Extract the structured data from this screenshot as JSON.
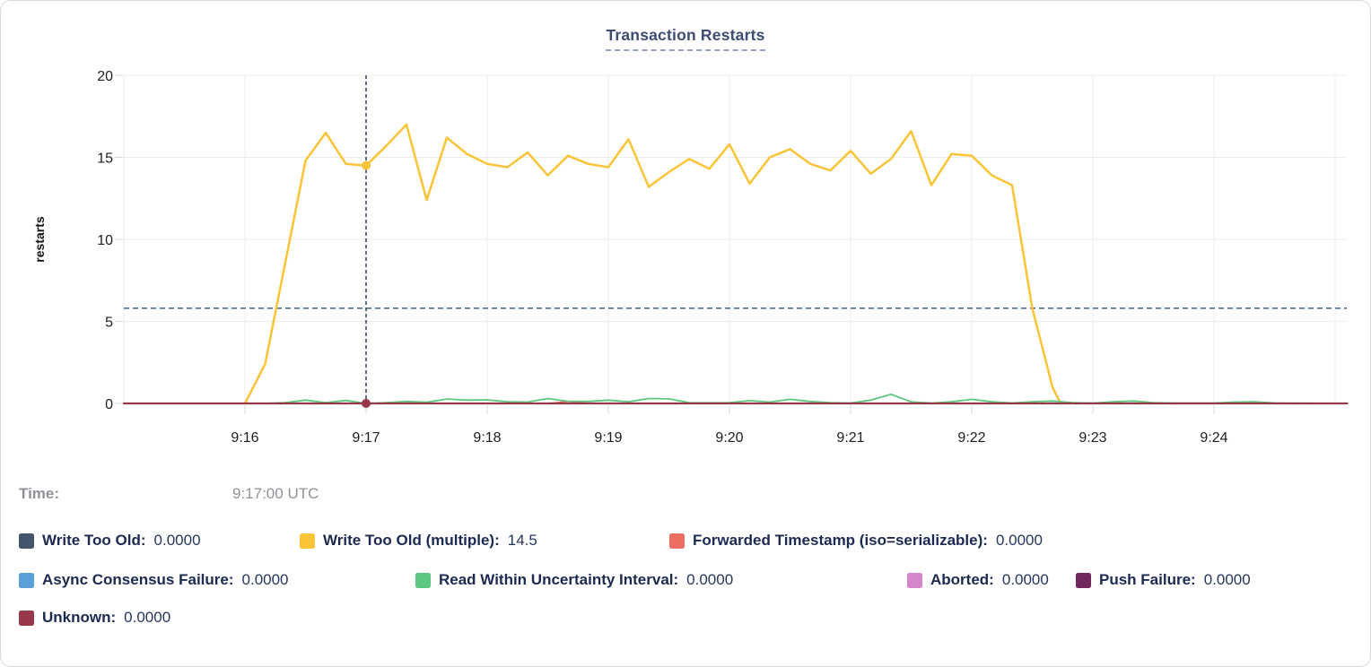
{
  "title": "Transaction Restarts",
  "hover": {
    "time_label": "Time:",
    "time_value": "9:17:00 UTC"
  },
  "legend": {
    "rows": [
      {
        "items": [
          {
            "label": "Write Too Old:",
            "value": "0.0000",
            "color": "#44546b"
          },
          {
            "label": "Write Too Old (multiple):",
            "value": "14.5",
            "color": "#fbc437"
          },
          {
            "label": "Forwarded Timestamp (iso=serializable):",
            "value": "0.0000",
            "color": "#ec6e62"
          }
        ]
      },
      {
        "items": [
          {
            "label": "Async Consensus Failure:",
            "value": "0.0000",
            "color": "#5b9fd8"
          },
          {
            "label": "Read Within Uncertainty Interval:",
            "value": "0.0000",
            "color": "#5ec77f"
          },
          {
            "label": "Aborted:",
            "value": "0.0000",
            "color": "#d685ca"
          },
          {
            "label": "Push Failure:",
            "value": "0.0000",
            "color": "#71295d"
          }
        ]
      },
      {
        "items": [
          {
            "label": "Unknown:",
            "value": "0.0000",
            "color": "#96374a"
          }
        ]
      }
    ]
  },
  "chart_data": {
    "type": "line",
    "title": "Transaction Restarts",
    "xlabel": "",
    "ylabel": "restarts",
    "ylim": [
      0,
      20
    ],
    "yticks": [
      0,
      5,
      10,
      15,
      20
    ],
    "grid": true,
    "legend_position": "below",
    "x_domain": [
      "9:15:00",
      "9:25:06"
    ],
    "x_grid_times": [
      "9:15:00",
      "9:16:00",
      "9:17:00",
      "9:18:00",
      "9:19:00",
      "9:20:00",
      "9:21:00",
      "9:22:00",
      "9:23:00",
      "9:24:00",
      "9:25:00"
    ],
    "x_ticks": [
      {
        "time": "9:16:00",
        "label": "9:16"
      },
      {
        "time": "9:17:00",
        "label": "9:17"
      },
      {
        "time": "9:18:00",
        "label": "9:18"
      },
      {
        "time": "9:19:00",
        "label": "9:19"
      },
      {
        "time": "9:20:00",
        "label": "9:20"
      },
      {
        "time": "9:21:00",
        "label": "9:21"
      },
      {
        "time": "9:22:00",
        "label": "9:22"
      },
      {
        "time": "9:23:00",
        "label": "9:23"
      },
      {
        "time": "9:24:00",
        "label": "9:24"
      }
    ],
    "hovered_time": "9:17:00",
    "crosshair": {
      "time": "9:17:00",
      "color": "#3a4c68"
    },
    "guide_line": {
      "value": 5.8,
      "color": "#4c6f94"
    },
    "series": [
      {
        "name": "Write Too Old",
        "color": "#44546b",
        "stroke_width": 1.6,
        "points": [
          [
            "9:15:00",
            0
          ],
          [
            "9:25:06",
            0
          ]
        ]
      },
      {
        "name": "Write Too Old (multiple)",
        "color": "#fbc437",
        "stroke_width": 2.5,
        "points": [
          [
            "9:16:00",
            0
          ],
          [
            "9:16:10",
            2.4
          ],
          [
            "9:16:20",
            8.6
          ],
          [
            "9:16:30",
            14.8
          ],
          [
            "9:16:40",
            16.5
          ],
          [
            "9:16:50",
            14.6
          ],
          [
            "9:17:00",
            14.5
          ],
          [
            "9:17:10",
            15.7
          ],
          [
            "9:17:20",
            17.0
          ],
          [
            "9:17:30",
            12.4
          ],
          [
            "9:17:40",
            16.2
          ],
          [
            "9:17:50",
            15.2
          ],
          [
            "9:18:00",
            14.6
          ],
          [
            "9:18:10",
            14.4
          ],
          [
            "9:18:20",
            15.3
          ],
          [
            "9:18:30",
            13.9
          ],
          [
            "9:18:40",
            15.1
          ],
          [
            "9:18:50",
            14.6
          ],
          [
            "9:19:00",
            14.4
          ],
          [
            "9:19:10",
            16.1
          ],
          [
            "9:19:20",
            13.2
          ],
          [
            "9:19:30",
            14.1
          ],
          [
            "9:19:40",
            14.9
          ],
          [
            "9:19:50",
            14.3
          ],
          [
            "9:20:00",
            15.8
          ],
          [
            "9:20:10",
            13.4
          ],
          [
            "9:20:20",
            15.0
          ],
          [
            "9:20:30",
            15.5
          ],
          [
            "9:20:40",
            14.6
          ],
          [
            "9:20:50",
            14.2
          ],
          [
            "9:21:00",
            15.4
          ],
          [
            "9:21:10",
            14.0
          ],
          [
            "9:21:20",
            14.9
          ],
          [
            "9:21:30",
            16.6
          ],
          [
            "9:21:40",
            13.3
          ],
          [
            "9:21:50",
            15.2
          ],
          [
            "9:22:00",
            15.1
          ],
          [
            "9:22:10",
            13.9
          ],
          [
            "9:22:20",
            13.3
          ],
          [
            "9:22:30",
            5.8
          ],
          [
            "9:22:40",
            1.0
          ],
          [
            "9:22:44",
            0
          ]
        ]
      },
      {
        "name": "Forwarded Timestamp (iso=serializable)",
        "color": "#ec6e62",
        "stroke_width": 1.6,
        "points": [
          [
            "9:15:00",
            0
          ],
          [
            "9:18:30",
            0
          ],
          [
            "9:18:40",
            0.12
          ],
          [
            "9:18:50",
            0
          ],
          [
            "9:25:06",
            0
          ]
        ]
      },
      {
        "name": "Async Consensus Failure",
        "color": "#5b9fd8",
        "stroke_width": 1.6,
        "points": [
          [
            "9:15:00",
            0
          ],
          [
            "9:25:06",
            0
          ]
        ]
      },
      {
        "name": "Read Within Uncertainty Interval",
        "color": "#5ec77f",
        "stroke_width": 1.8,
        "points": [
          [
            "9:15:00",
            0
          ],
          [
            "9:16:10",
            0
          ],
          [
            "9:16:20",
            0.05
          ],
          [
            "9:16:30",
            0.2
          ],
          [
            "9:16:40",
            0.05
          ],
          [
            "9:16:50",
            0.18
          ],
          [
            "9:17:00",
            0
          ],
          [
            "9:17:10",
            0.05
          ],
          [
            "9:17:20",
            0.12
          ],
          [
            "9:17:30",
            0.07
          ],
          [
            "9:17:40",
            0.27
          ],
          [
            "9:17:50",
            0.2
          ],
          [
            "9:18:00",
            0.22
          ],
          [
            "9:18:10",
            0.1
          ],
          [
            "9:18:20",
            0.08
          ],
          [
            "9:18:30",
            0.3
          ],
          [
            "9:18:40",
            0.13
          ],
          [
            "9:18:50",
            0.12
          ],
          [
            "9:19:00",
            0.2
          ],
          [
            "9:19:10",
            0.1
          ],
          [
            "9:19:20",
            0.3
          ],
          [
            "9:19:30",
            0.28
          ],
          [
            "9:19:40",
            0.05
          ],
          [
            "9:19:50",
            0.04
          ],
          [
            "9:20:00",
            0.05
          ],
          [
            "9:20:10",
            0.17
          ],
          [
            "9:20:20",
            0.08
          ],
          [
            "9:20:30",
            0.25
          ],
          [
            "9:20:40",
            0.12
          ],
          [
            "9:20:50",
            0.05
          ],
          [
            "9:21:00",
            0.02
          ],
          [
            "9:21:10",
            0.2
          ],
          [
            "9:21:20",
            0.55
          ],
          [
            "9:21:30",
            0.1
          ],
          [
            "9:21:40",
            0.02
          ],
          [
            "9:21:50",
            0.1
          ],
          [
            "9:22:00",
            0.25
          ],
          [
            "9:22:10",
            0.1
          ],
          [
            "9:22:20",
            0.03
          ],
          [
            "9:22:30",
            0.1
          ],
          [
            "9:22:40",
            0.15
          ],
          [
            "9:22:50",
            0.05
          ],
          [
            "9:23:00",
            0.02
          ],
          [
            "9:23:10",
            0.1
          ],
          [
            "9:23:20",
            0.15
          ],
          [
            "9:23:30",
            0.05
          ],
          [
            "9:23:40",
            0.02
          ],
          [
            "9:24:00",
            0.02
          ],
          [
            "9:24:10",
            0.08
          ],
          [
            "9:24:20",
            0.1
          ],
          [
            "9:24:30",
            0.03
          ],
          [
            "9:24:40",
            0.01
          ],
          [
            "9:25:06",
            0
          ]
        ]
      },
      {
        "name": "Aborted",
        "color": "#d685ca",
        "stroke_width": 1.6,
        "points": [
          [
            "9:15:00",
            0
          ],
          [
            "9:25:06",
            0
          ]
        ]
      },
      {
        "name": "Push Failure",
        "color": "#71295d",
        "stroke_width": 1.6,
        "points": [
          [
            "9:15:00",
            0
          ],
          [
            "9:25:06",
            0
          ]
        ]
      },
      {
        "name": "Unknown",
        "color": "#96374a",
        "stroke_width": 2.2,
        "points": [
          [
            "9:15:00",
            0
          ],
          [
            "9:25:06",
            0
          ]
        ]
      }
    ],
    "hover_dots": [
      {
        "series": "Write Too Old (multiple)",
        "time": "9:17:00",
        "value": 14.5,
        "color": "#fbc437"
      },
      {
        "series": "Unknown",
        "time": "9:17:00",
        "value": 0,
        "color": "#96374a"
      }
    ]
  }
}
